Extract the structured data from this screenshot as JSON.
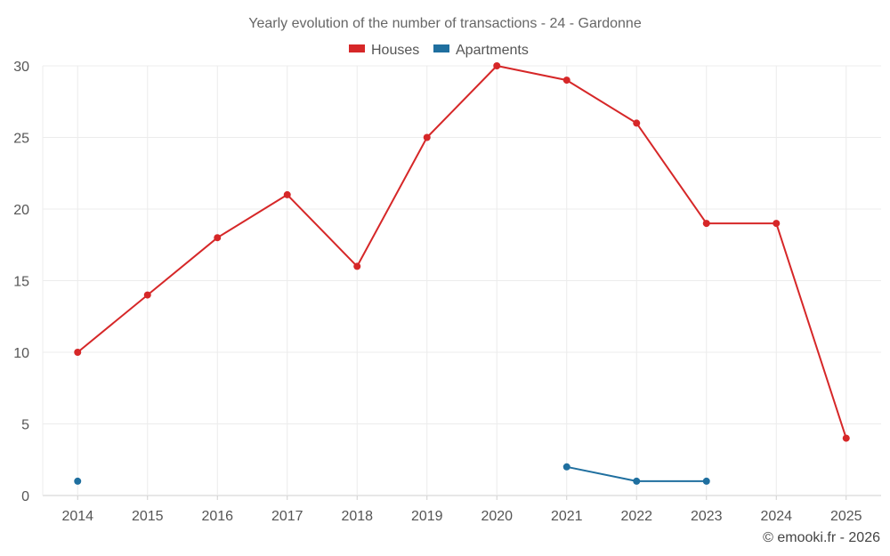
{
  "chart_data": {
    "type": "line",
    "title": "Yearly evolution of the number of transactions - 24 - Gardonne",
    "categories": [
      "2014",
      "2015",
      "2016",
      "2017",
      "2018",
      "2019",
      "2020",
      "2021",
      "2022",
      "2023",
      "2024",
      "2025"
    ],
    "series": [
      {
        "name": "Houses",
        "color": "#d62728",
        "values": [
          10,
          14,
          18,
          21,
          16,
          25,
          30,
          29,
          26,
          19,
          19,
          4
        ]
      },
      {
        "name": "Apartments",
        "color": "#1f6f9f",
        "values": [
          1,
          null,
          null,
          null,
          null,
          null,
          null,
          2,
          1,
          1,
          null,
          null
        ]
      }
    ],
    "ylim": [
      0,
      30
    ],
    "yticks": [
      0,
      5,
      10,
      15,
      20,
      25,
      30
    ],
    "grid": true,
    "legend": "top-center",
    "xlabel": "",
    "ylabel": ""
  },
  "credit": "© emooki.fr - 2026"
}
